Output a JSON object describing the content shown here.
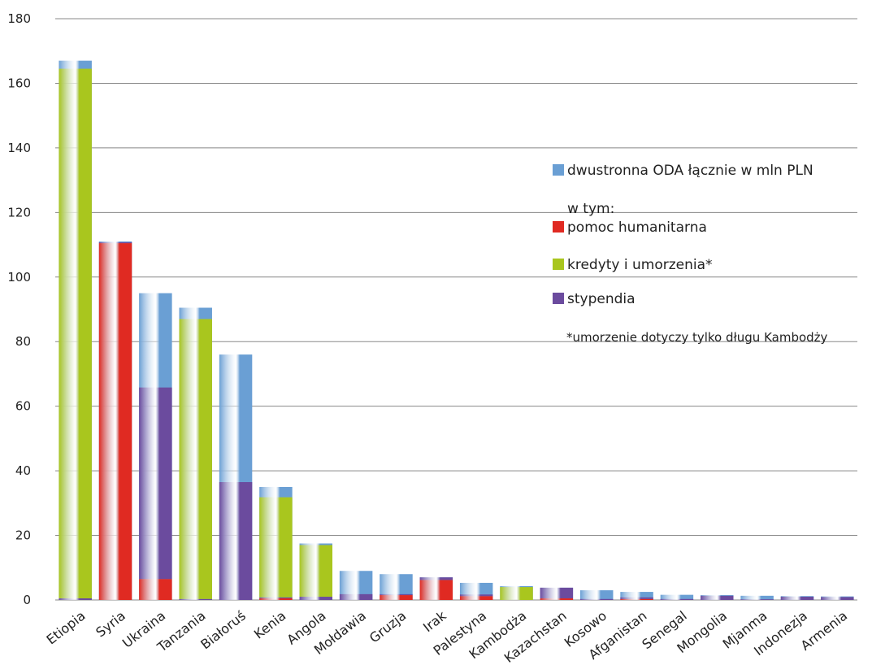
{
  "chart_data": {
    "type": "bar",
    "categories": [
      "Etiopia",
      "Syria",
      "Ukraina",
      "Tanzania",
      "Białoruś",
      "Kenia",
      "Angola",
      "Mołdawia",
      "Gruzja",
      "Irak",
      "Palestyna",
      "Kambodża",
      "Kazachstan",
      "Kosowo",
      "Afganistan",
      "Senegal",
      "Mongolia",
      "Mjanma",
      "Indonezja",
      "Armenia"
    ],
    "series": [
      {
        "name": "dwustronna ODA łącznie w mln PLN",
        "color": "#6a9fd4",
        "values": [
          167,
          111,
          95,
          90.5,
          76,
          35,
          17.5,
          9,
          8,
          7,
          5.3,
          4.3,
          3.8,
          3,
          2.5,
          1.6,
          1.5,
          1.3,
          1.2,
          1.1
        ]
      },
      {
        "name": "pomoc humanitarna",
        "color": "#e02a22",
        "values": [
          0,
          110.5,
          6.5,
          0,
          0,
          0.5,
          0,
          0,
          1.5,
          6.2,
          1.2,
          0,
          0.5,
          0,
          0.3,
          0,
          0,
          0,
          0,
          0
        ]
      },
      {
        "name": "stypendia",
        "color": "#6b4b9e",
        "values": [
          0.5,
          0.3,
          59.3,
          0.3,
          36.5,
          0.3,
          1,
          1.8,
          0.3,
          0.8,
          0.5,
          0,
          3.3,
          0.3,
          0.5,
          0.3,
          1.3,
          0.2,
          1,
          0.9
        ]
      },
      {
        "name": "kredyty i umorzenia*",
        "color": "#a9c61e",
        "values": [
          164,
          0,
          0,
          86.7,
          0,
          31,
          16,
          0,
          0,
          0,
          0,
          4,
          0,
          0,
          0,
          0,
          0,
          0,
          0,
          0
        ]
      }
    ],
    "legend_subtitle": "w tym:",
    "note": "*umorzenie dotyczy tylko długu Kambodży",
    "ylim": [
      0,
      180
    ],
    "yticks": [
      0,
      20,
      40,
      60,
      80,
      100,
      120,
      140,
      160,
      180
    ],
    "grid": true
  }
}
